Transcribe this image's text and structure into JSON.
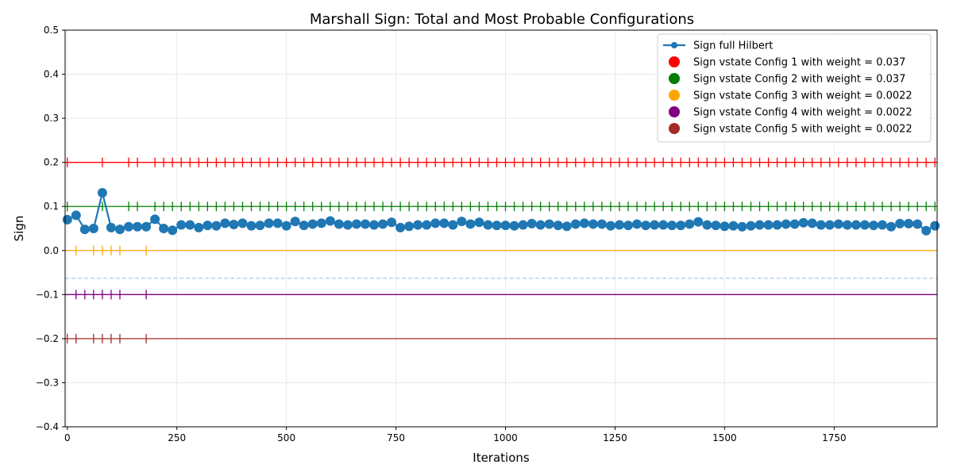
{
  "chart_data": {
    "type": "line",
    "title": "Marshall Sign: Total and Most Probable Configurations",
    "xlabel": "Iterations",
    "ylabel": "Sign",
    "xlim": [
      -5,
      1985
    ],
    "ylim": [
      -0.4,
      0.5
    ],
    "xticks": [
      0,
      250,
      500,
      750,
      1000,
      1250,
      1500,
      1750
    ],
    "yticks": [
      -0.4,
      -0.3,
      -0.2,
      -0.1,
      0.0,
      0.1,
      0.2,
      0.3,
      0.4,
      0.5
    ],
    "xtick_labels": [
      "0",
      "250",
      "500",
      "750",
      "1000",
      "1250",
      "1500",
      "1750"
    ],
    "ytick_labels": [
      "−0.4",
      "−0.3",
      "−0.2",
      "−0.1",
      "0.0",
      "0.1",
      "0.2",
      "0.3",
      "0.4",
      "0.5"
    ],
    "grid": true,
    "legend_position": "top-right",
    "reference_line": {
      "y": -0.063,
      "style": "dashed",
      "color": "#aec7e8"
    },
    "series": [
      {
        "name": "Sign full Hilbert",
        "color": "#1f77b4",
        "style": "line-marker",
        "x": [
          0,
          20,
          40,
          60,
          80,
          100,
          120,
          140,
          160,
          180,
          200,
          220,
          240,
          260,
          280,
          300,
          320,
          340,
          360,
          380,
          400,
          420,
          440,
          460,
          480,
          500,
          520,
          540,
          560,
          580,
          600,
          620,
          640,
          660,
          680,
          700,
          720,
          740,
          760,
          780,
          800,
          820,
          840,
          860,
          880,
          900,
          920,
          940,
          960,
          980,
          1000,
          1020,
          1040,
          1060,
          1080,
          1100,
          1120,
          1140,
          1160,
          1180,
          1200,
          1220,
          1240,
          1260,
          1280,
          1300,
          1320,
          1340,
          1360,
          1380,
          1400,
          1420,
          1440,
          1460,
          1480,
          1500,
          1520,
          1540,
          1560,
          1580,
          1600,
          1620,
          1640,
          1660,
          1680,
          1700,
          1720,
          1740,
          1760,
          1780,
          1800,
          1820,
          1840,
          1860,
          1880,
          1900,
          1920,
          1940,
          1960,
          1980
        ],
        "y": [
          0.07,
          0.08,
          0.048,
          0.05,
          0.131,
          0.052,
          0.048,
          0.054,
          0.054,
          0.054,
          0.071,
          0.05,
          0.046,
          0.058,
          0.058,
          0.052,
          0.057,
          0.056,
          0.062,
          0.059,
          0.062,
          0.056,
          0.057,
          0.062,
          0.062,
          0.056,
          0.066,
          0.057,
          0.06,
          0.062,
          0.067,
          0.06,
          0.058,
          0.06,
          0.06,
          0.058,
          0.06,
          0.064,
          0.052,
          0.055,
          0.058,
          0.058,
          0.062,
          0.062,
          0.058,
          0.066,
          0.06,
          0.064,
          0.058,
          0.057,
          0.057,
          0.056,
          0.058,
          0.061,
          0.058,
          0.06,
          0.057,
          0.055,
          0.06,
          0.062,
          0.06,
          0.06,
          0.056,
          0.058,
          0.057,
          0.06,
          0.057,
          0.058,
          0.058,
          0.057,
          0.057,
          0.06,
          0.065,
          0.058,
          0.057,
          0.055,
          0.056,
          0.054,
          0.056,
          0.058,
          0.058,
          0.058,
          0.06,
          0.06,
          0.063,
          0.062,
          0.058,
          0.058,
          0.06,
          0.058,
          0.058,
          0.058,
          0.057,
          0.058,
          0.054,
          0.061,
          0.061,
          0.06,
          0.045,
          0.056
        ]
      },
      {
        "name": "Sign vstate Config 1 with weight = 0.037",
        "color": "#ff0000",
        "baseline": 0.2,
        "tick_x": [
          0,
          80,
          140,
          160,
          200,
          220,
          240,
          260,
          280,
          300,
          320,
          340,
          360,
          380,
          400,
          420,
          440,
          460,
          480,
          500,
          520,
          540,
          560,
          580,
          600,
          620,
          640,
          660,
          680,
          700,
          720,
          740,
          760,
          780,
          800,
          820,
          840,
          860,
          880,
          900,
          920,
          940,
          960,
          980,
          1000,
          1020,
          1040,
          1060,
          1080,
          1100,
          1120,
          1140,
          1160,
          1180,
          1200,
          1220,
          1240,
          1260,
          1280,
          1300,
          1320,
          1340,
          1360,
          1380,
          1400,
          1420,
          1440,
          1460,
          1480,
          1500,
          1520,
          1540,
          1560,
          1580,
          1600,
          1620,
          1640,
          1660,
          1680,
          1700,
          1720,
          1740,
          1760,
          1780,
          1800,
          1820,
          1840,
          1860,
          1880,
          1900,
          1920,
          1940,
          1960,
          1980
        ]
      },
      {
        "name": "Sign vstate Config 2 with weight = 0.037",
        "color": "#008000",
        "baseline": 0.1,
        "tick_x": [
          0,
          80,
          140,
          160,
          200,
          220,
          240,
          260,
          280,
          300,
          320,
          340,
          360,
          380,
          400,
          420,
          440,
          460,
          480,
          500,
          520,
          540,
          560,
          580,
          600,
          620,
          640,
          660,
          680,
          700,
          720,
          740,
          760,
          780,
          800,
          820,
          840,
          860,
          880,
          900,
          920,
          940,
          960,
          980,
          1000,
          1020,
          1040,
          1060,
          1080,
          1100,
          1120,
          1140,
          1160,
          1180,
          1200,
          1220,
          1240,
          1260,
          1280,
          1300,
          1320,
          1340,
          1360,
          1380,
          1400,
          1420,
          1440,
          1460,
          1480,
          1500,
          1520,
          1540,
          1560,
          1580,
          1600,
          1620,
          1640,
          1660,
          1680,
          1700,
          1720,
          1740,
          1760,
          1780,
          1800,
          1820,
          1840,
          1860,
          1880,
          1900,
          1920,
          1940,
          1960,
          1980
        ]
      },
      {
        "name": "Sign vstate Config 3 with weight = 0.0022",
        "color": "#ffa500",
        "baseline": 0.0,
        "tick_x": [
          20,
          60,
          80,
          100,
          120,
          180
        ]
      },
      {
        "name": "Sign vstate Config 4 with weight = 0.0022",
        "color": "#800080",
        "baseline": -0.1,
        "tick_x": [
          20,
          40,
          60,
          80,
          100,
          120,
          180
        ]
      },
      {
        "name": "Sign vstate Config 5 with weight = 0.0022",
        "color": "#a52a2a",
        "baseline": -0.2,
        "tick_x": [
          0,
          20,
          60,
          80,
          100,
          120,
          180
        ]
      }
    ]
  }
}
